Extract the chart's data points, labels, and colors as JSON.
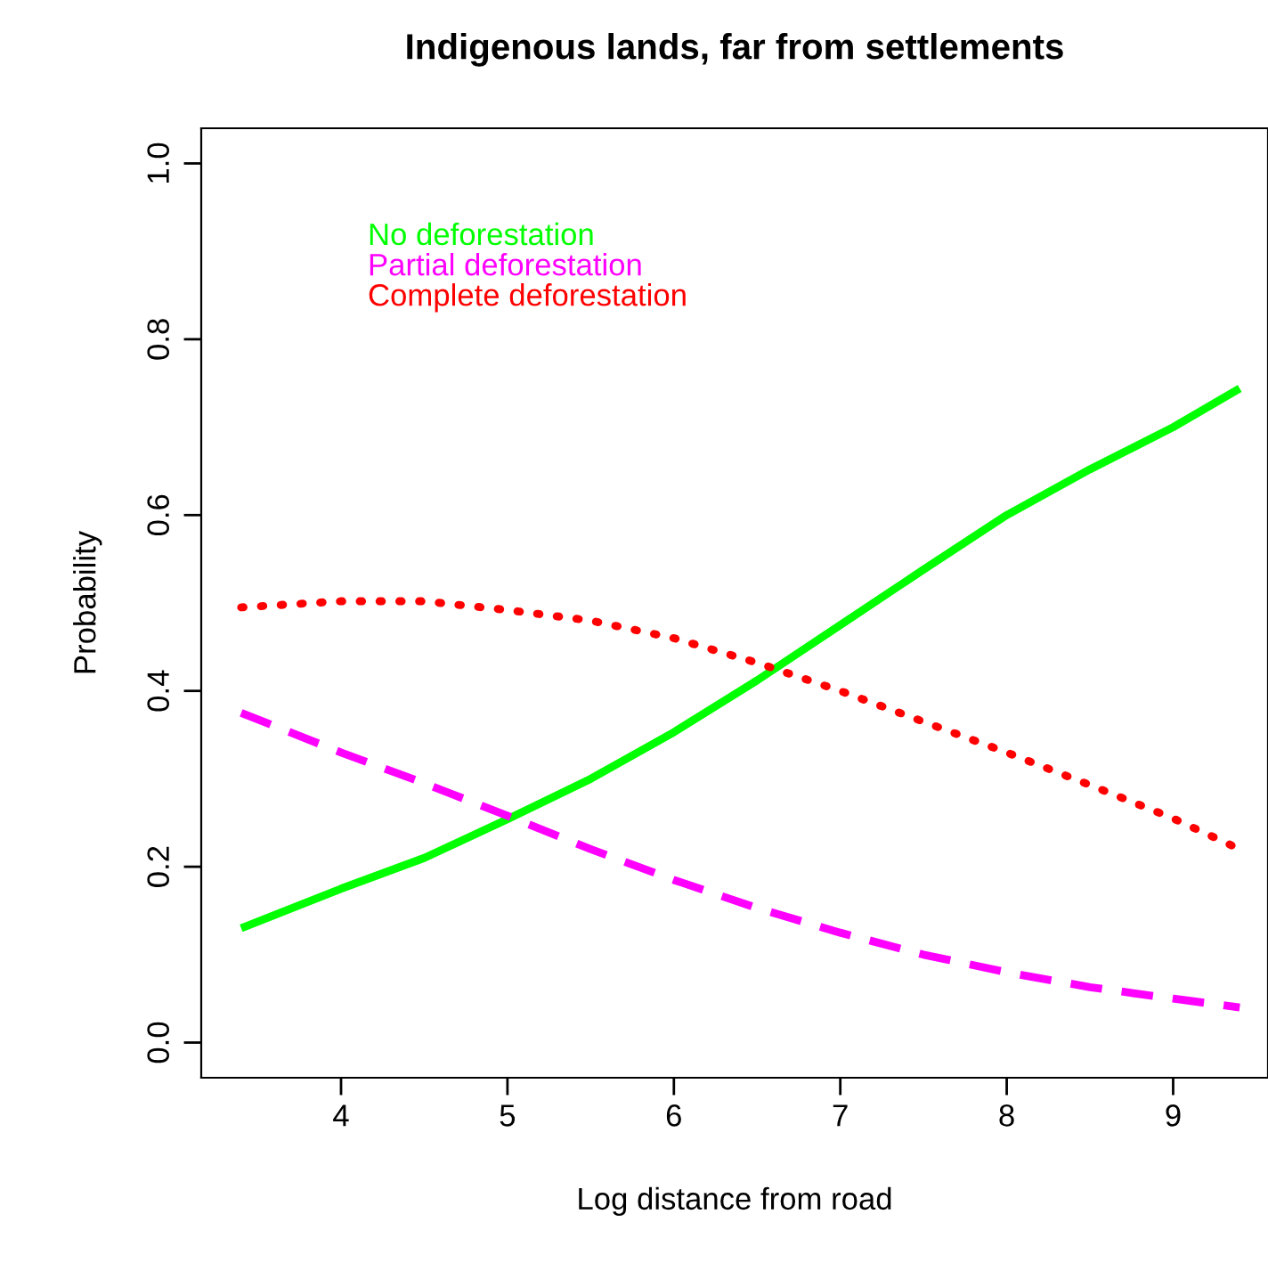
{
  "chart_data": {
    "type": "line",
    "title": "Indigenous lands, far from settlements",
    "xlabel": "Log distance from road",
    "ylabel": "Probability",
    "x": [
      3.4,
      4,
      4.5,
      5,
      5.5,
      6,
      6.5,
      7,
      7.5,
      8,
      8.5,
      9,
      9.4
    ],
    "series": [
      {
        "name": "No deforestation",
        "color": "#00ff00",
        "line_style": "solid",
        "values": [
          0.13,
          0.175,
          0.21,
          0.254,
          0.3,
          0.353,
          0.412,
          0.475,
          0.538,
          0.6,
          0.652,
          0.7,
          0.744
        ]
      },
      {
        "name": "Partial deforestation",
        "color": "#ff00ff",
        "line_style": "dashed",
        "values": [
          0.375,
          0.33,
          0.295,
          0.258,
          0.22,
          0.185,
          0.153,
          0.125,
          0.1,
          0.08,
          0.063,
          0.05,
          0.04
        ]
      },
      {
        "name": "Complete deforestation",
        "color": "#ff0000",
        "line_style": "dotted",
        "values": [
          0.495,
          0.502,
          0.502,
          0.492,
          0.48,
          0.46,
          0.432,
          0.4,
          0.365,
          0.33,
          0.293,
          0.255,
          0.22
        ]
      }
    ],
    "xlim": [
      3.16,
      9.57
    ],
    "ylim": [
      -0.04,
      1.04
    ],
    "xticks": [
      4,
      5,
      6,
      7,
      8,
      9
    ],
    "yticks": [
      {
        "value": 0,
        "label": "0.0"
      },
      {
        "value": 0.2,
        "label": "0.2"
      },
      {
        "value": 0.4,
        "label": "0.4"
      },
      {
        "value": 0.6,
        "label": "0.6"
      },
      {
        "value": 0.8,
        "label": "0.8"
      },
      {
        "value": 1,
        "label": "1.0"
      }
    ],
    "legend": "top left",
    "grid": false,
    "marker": "none"
  }
}
